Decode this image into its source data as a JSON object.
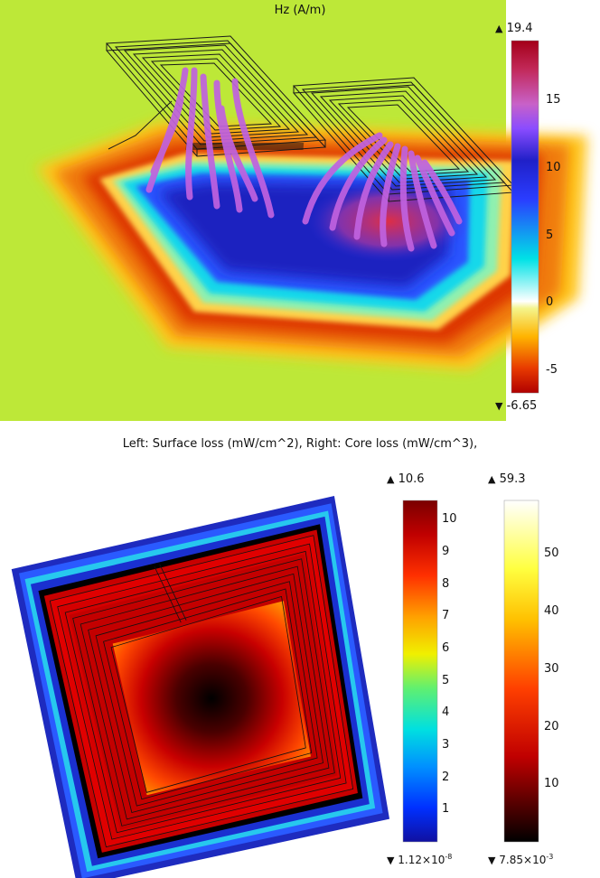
{
  "top": {
    "title": "Hz (A/m)",
    "colorbar": {
      "max_label": "19.4",
      "min_label": "-6.65",
      "ticks": [
        "15",
        "10",
        "5",
        "0",
        "-5"
      ],
      "tick_values": [
        15,
        10,
        5,
        0,
        -5
      ],
      "max": 19.4,
      "min": -6.65,
      "colors": [
        "#b00000",
        "#e83a00",
        "#ffb400",
        "#f4f48c",
        "#ffffff",
        "#00e2e6",
        "#2a3dff",
        "#2020c8",
        "#8a4cff",
        "#c861c8",
        "#c22858",
        "#a30018"
      ]
    }
  },
  "bottom": {
    "title": "Left: Surface loss (mW/cm^2), Right: Core loss (mW/cm^3),",
    "surface_colorbar": {
      "max_label": "10.6",
      "min_label_base": "1.12×10",
      "min_label_exp": "-8",
      "ticks": [
        "10",
        "9",
        "8",
        "7",
        "6",
        "5",
        "4",
        "3",
        "2",
        "1"
      ],
      "tick_values": [
        10,
        9,
        8,
        7,
        6,
        5,
        4,
        3,
        2,
        1
      ],
      "max": 10.6,
      "min": 0
    },
    "core_colorbar": {
      "max_label": "59.3",
      "min_label_base": "7.85×10",
      "min_label_exp": "-3",
      "ticks": [
        "50",
        "40",
        "30",
        "20",
        "10"
      ],
      "tick_values": [
        50,
        40,
        30,
        20,
        10
      ],
      "max": 59.3,
      "min": 0
    }
  },
  "symbols": {
    "up": "▲",
    "down": "▼"
  }
}
